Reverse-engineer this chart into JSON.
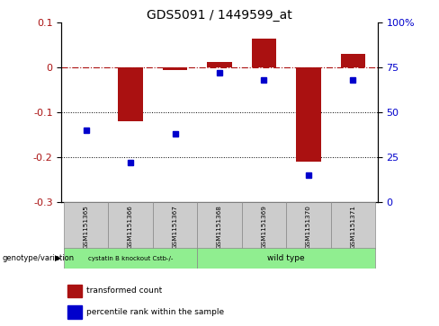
{
  "title": "GDS5091 / 1449599_at",
  "samples": [
    "GSM1151365",
    "GSM1151366",
    "GSM1151367",
    "GSM1151368",
    "GSM1151369",
    "GSM1151370",
    "GSM1151371"
  ],
  "bar_values": [
    0.001,
    -0.12,
    -0.005,
    0.012,
    0.065,
    -0.21,
    0.03
  ],
  "percentile_values": [
    40,
    22,
    38,
    72,
    68,
    15,
    68
  ],
  "ylim_left": [
    -0.3,
    0.1
  ],
  "ylim_right": [
    0,
    100
  ],
  "yticks_left": [
    -0.3,
    -0.2,
    -0.1,
    0.0,
    0.1
  ],
  "yticks_right": [
    0,
    25,
    50,
    75,
    100
  ],
  "bar_color": "#AA1111",
  "point_color": "#0000CC",
  "hline_color": "#AA1111",
  "dotted_line_color": "#000000",
  "background_color": "#ffffff",
  "group1_label": "cystatin B knockout Cstb-/-",
  "group2_label": "wild type",
  "group1_indices": [
    0,
    1,
    2
  ],
  "group2_indices": [
    3,
    4,
    5,
    6
  ],
  "group_color": "#90EE90",
  "sample_box_color": "#CCCCCC",
  "genotype_label": "genotype/variation",
  "legend_bar_label": "transformed count",
  "legend_point_label": "percentile rank within the sample",
  "title_fontsize": 10,
  "axis_fontsize": 8,
  "label_fontsize": 6
}
